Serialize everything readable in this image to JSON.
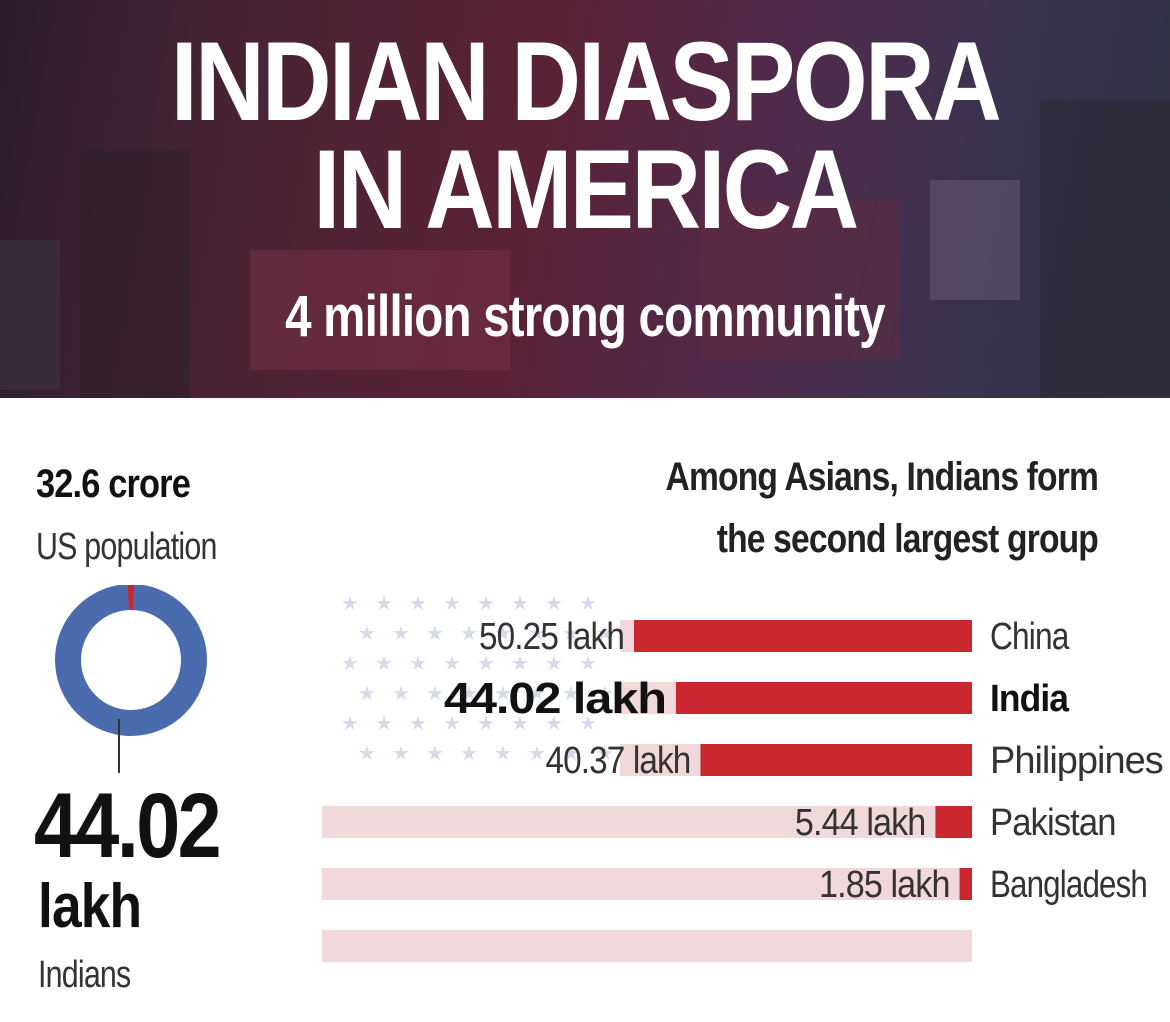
{
  "header": {
    "title_line1": "INDIAN DIASPORA",
    "title_line2": "IN AMERICA",
    "subtitle": "4 million strong community"
  },
  "us_population": {
    "value": "32.6 crore",
    "label": "US population"
  },
  "indians": {
    "value": "44.02",
    "unit": "lakh",
    "label": "Indians"
  },
  "colors": {
    "bar": "#c8282e",
    "stripe": "#f1d8da",
    "donut": "#4a6cae",
    "donut_share": "#c8282e",
    "star": "#d5dbe7"
  },
  "chart_data": {
    "type": "bar",
    "orientation": "horizontal",
    "title": "Among Asians, Indians form the second largest group",
    "categories": [
      "China",
      "India",
      "Philippines",
      "Pakistan",
      "Bangladesh"
    ],
    "values": [
      50.25,
      44.02,
      40.37,
      5.44,
      1.85
    ],
    "value_labels": [
      "50.25 lakh",
      "44.02 lakh",
      "40.37 lakh",
      "5.44 lakh",
      "1.85 lakh"
    ],
    "highlight": "India",
    "unit": "lakh"
  },
  "donut_data": {
    "type": "pie",
    "total": 32.6,
    "part": 0.4402,
    "unit": "crore"
  }
}
